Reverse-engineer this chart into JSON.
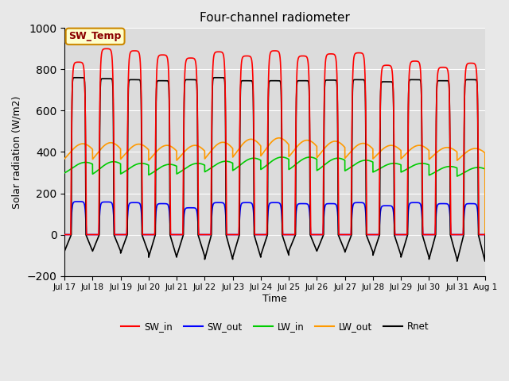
{
  "title": "Four-channel radiometer",
  "xlabel": "Time",
  "ylabel": "Solar radiation (W/m2)",
  "ylim": [
    -200,
    1000
  ],
  "xlim": [
    0,
    15
  ],
  "figsize": [
    6.4,
    4.8
  ],
  "dpi": 100,
  "background_color": "#e8e8e8",
  "plot_bg_color": "#dcdcdc",
  "annotation_label": "SW_Temp",
  "annotation_bg": "#ffffcc",
  "annotation_border": "#cc8800",
  "annotation_text_color": "#8b0000",
  "legend_entries": [
    "SW_in",
    "SW_out",
    "LW_in",
    "LW_out",
    "Rnet"
  ],
  "legend_colors": [
    "#ff0000",
    "#0000ff",
    "#00cc00",
    "#ff9900",
    "#000000"
  ],
  "x_tick_labels": [
    "Jul 17",
    "Jul 18",
    "Jul 19",
    "Jul 20",
    "Jul 21",
    "Jul 22",
    "Jul 23",
    "Jul 24",
    "Jul 25",
    "Jul 26",
    "Jul 27",
    "Jul 28",
    "Jul 29",
    "Jul 30",
    "Jul 31",
    "Aug 1"
  ],
  "n_days": 15,
  "SW_in_peak": [
    835,
    900,
    890,
    870,
    855,
    885,
    865,
    890,
    865,
    875,
    880,
    820,
    840,
    810,
    830
  ],
  "SW_out_peak": [
    160,
    158,
    155,
    150,
    130,
    155,
    155,
    155,
    150,
    150,
    155,
    140,
    155,
    150,
    150
  ],
  "LW_in_base": [
    320,
    318,
    315,
    310,
    315,
    325,
    335,
    340,
    340,
    335,
    330,
    320,
    320,
    305,
    300
  ],
  "LW_in_amp": [
    30,
    35,
    30,
    30,
    30,
    30,
    35,
    35,
    35,
    35,
    30,
    25,
    25,
    25,
    25
  ],
  "LW_out_base": [
    390,
    390,
    388,
    382,
    382,
    392,
    402,
    408,
    402,
    397,
    392,
    387,
    387,
    382,
    377
  ],
  "LW_out_amp": [
    50,
    55,
    50,
    50,
    50,
    55,
    60,
    60,
    55,
    55,
    50,
    45,
    45,
    40,
    40
  ],
  "Rnet_peak": [
    760,
    755,
    750,
    745,
    750,
    760,
    745,
    745,
    745,
    748,
    750,
    740,
    750,
    745,
    750
  ],
  "Rnet_night": [
    -80,
    -80,
    -90,
    -110,
    -105,
    -120,
    -110,
    -100,
    -80,
    -80,
    -85,
    -100,
    -110,
    -120,
    -130
  ],
  "day_start": 0.22,
  "day_end": 0.78,
  "rnet_start": 0.24,
  "rnet_end": 0.76
}
